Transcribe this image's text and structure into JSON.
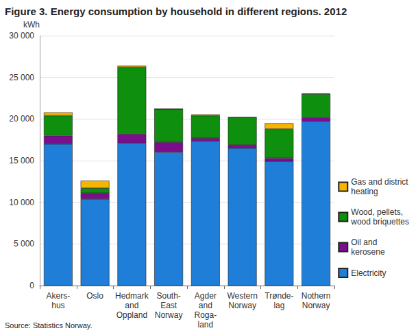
{
  "chart_data": {
    "type": "bar",
    "title": "Figure 3. Energy consumption by household in different regions. 2012",
    "y_label": "kWh",
    "source": "Source: Statistics Norway.",
    "categories": [
      "Akers-\nhus",
      "Oslo",
      "Hedmark\nand\nOppland",
      "South-\nEast\nNorway",
      "Agder\nand\nRoga-\nland",
      "Western\nNorway",
      "Trønde-\nlag",
      "Nothern\nNorway"
    ],
    "series": [
      {
        "name": "Electricity",
        "color": "#1f7fd8",
        "values": [
          17000,
          10400,
          17100,
          16000,
          17300,
          16500,
          14900,
          19700
        ]
      },
      {
        "name": "Oil and\nkerosene",
        "color": "#7a0e8c",
        "values": [
          1000,
          700,
          1100,
          1200,
          400,
          400,
          400,
          500
        ]
      },
      {
        "name": "Wood, pellets,\nwood briquettes",
        "color": "#0e8f0e",
        "values": [
          2400,
          600,
          8000,
          4000,
          2700,
          3300,
          3500,
          2800
        ]
      },
      {
        "name": "Gas and district\nheating",
        "color": "#f7b400",
        "values": [
          400,
          900,
          200,
          0,
          150,
          0,
          700,
          50
        ]
      }
    ],
    "ylim": [
      0,
      30000
    ],
    "yticks": [
      0,
      {
        "value": 5000,
        "label": "5 000"
      },
      {
        "value": 10000,
        "label": "10 000"
      },
      {
        "value": 15000,
        "label": "15 000"
      },
      {
        "value": 20000,
        "label": "20 000"
      },
      {
        "value": 25000,
        "label": "25 000"
      },
      {
        "value": 30000,
        "label": "30 000"
      }
    ],
    "stacked": true,
    "grid": true,
    "legend": "right"
  }
}
